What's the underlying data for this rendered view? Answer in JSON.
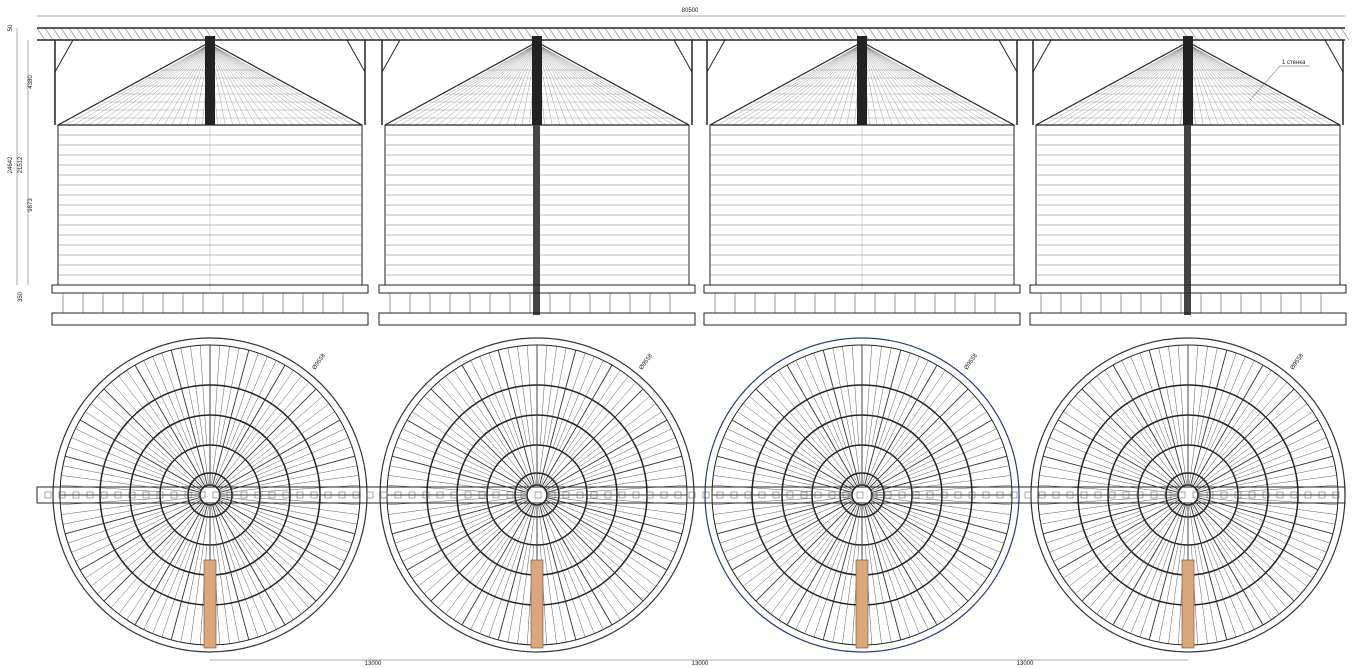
{
  "drawing": {
    "overall_length": "80500",
    "left_dimensions": [
      "50",
      "4380",
      "24642",
      "21512",
      "9873",
      "350"
    ],
    "callout": "1 стенка",
    "diameters": [
      "Ø9558",
      "Ø9558",
      "Ø9558",
      "Ø9558"
    ],
    "spacing": [
      "13000",
      "13000",
      "13000"
    ]
  }
}
